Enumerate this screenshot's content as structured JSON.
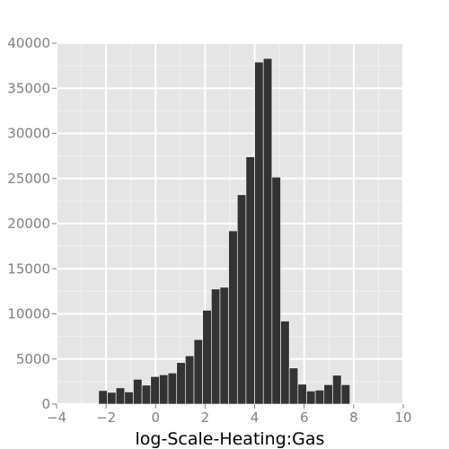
{
  "chart_data": {
    "type": "bar",
    "xlabel": "log-Scale-Heating:Gas",
    "ylabel": "",
    "xlim": [
      -4,
      10
    ],
    "ylim": [
      0,
      40000
    ],
    "grid": true,
    "bin_width": 0.35,
    "x_ticks": [
      "−4",
      "−2",
      "0",
      "2",
      "4",
      "6",
      "8",
      "10"
    ],
    "x_tick_values": [
      -4,
      -2,
      0,
      2,
      4,
      6,
      8,
      10
    ],
    "y_ticks": [
      "0",
      "5000",
      "10000",
      "15000",
      "20000",
      "25000",
      "30000",
      "35000",
      "40000"
    ],
    "y_tick_values": [
      0,
      5000,
      10000,
      15000,
      20000,
      25000,
      30000,
      35000,
      40000
    ],
    "bins": [
      {
        "x": -2.3,
        "count": 1500
      },
      {
        "x": -1.95,
        "count": 1300
      },
      {
        "x": -1.6,
        "count": 1800
      },
      {
        "x": -1.25,
        "count": 1350
      },
      {
        "x": -0.9,
        "count": 2750
      },
      {
        "x": -0.55,
        "count": 2100
      },
      {
        "x": -0.2,
        "count": 3050
      },
      {
        "x": 0.15,
        "count": 3250
      },
      {
        "x": 0.5,
        "count": 3450
      },
      {
        "x": 0.85,
        "count": 4600
      },
      {
        "x": 1.2,
        "count": 5350
      },
      {
        "x": 1.55,
        "count": 7150
      },
      {
        "x": 1.9,
        "count": 10400
      },
      {
        "x": 2.25,
        "count": 12750
      },
      {
        "x": 2.6,
        "count": 12950
      },
      {
        "x": 2.95,
        "count": 19200
      },
      {
        "x": 3.3,
        "count": 23200
      },
      {
        "x": 3.65,
        "count": 27400
      },
      {
        "x": 4.0,
        "count": 37900
      },
      {
        "x": 4.35,
        "count": 38300
      },
      {
        "x": 4.7,
        "count": 25150
      },
      {
        "x": 5.05,
        "count": 9200
      },
      {
        "x": 5.4,
        "count": 4000
      },
      {
        "x": 5.75,
        "count": 2200
      },
      {
        "x": 6.1,
        "count": 1450
      },
      {
        "x": 6.45,
        "count": 1550
      },
      {
        "x": 6.8,
        "count": 2150
      },
      {
        "x": 7.15,
        "count": 3200
      },
      {
        "x": 7.5,
        "count": 2150
      },
      {
        "x": 7.85,
        "count": 50
      }
    ],
    "colors": {
      "panel": "#e5e5e5",
      "grid_major": "#ffffff",
      "grid_minor": "#f2f2f2",
      "bar": "#333333",
      "tick_label": "#7f7f7f",
      "title": "#000000"
    }
  }
}
